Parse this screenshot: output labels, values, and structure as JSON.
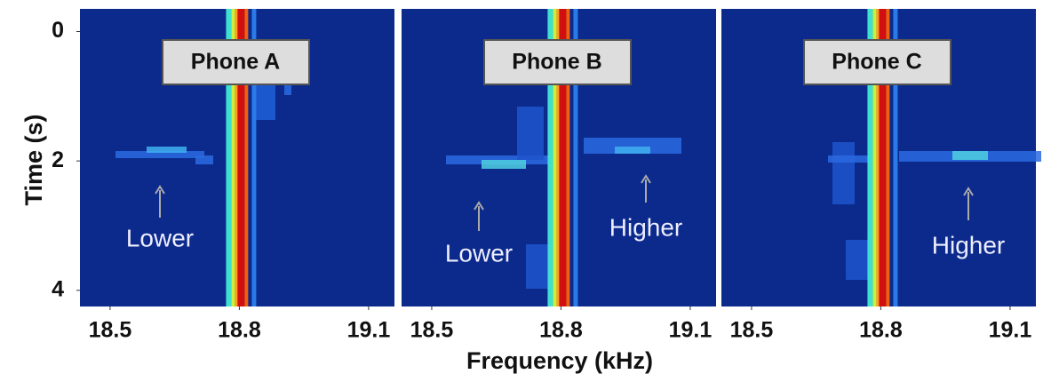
{
  "chart_data": [
    {
      "type": "heatmap",
      "title": "Phone A",
      "xlim": [
        18.43,
        19.16
      ],
      "ylim": [
        -0.35,
        4.25
      ],
      "xticks": [
        18.5,
        18.8,
        19.1
      ],
      "yticks": [
        0,
        2,
        4
      ],
      "y_label": "Time (s)",
      "annotations": [
        "Lower"
      ]
    },
    {
      "type": "heatmap",
      "title": "Phone B",
      "xlim": [
        18.43,
        19.16
      ],
      "ylim": [
        -0.35,
        4.25
      ],
      "xticks": [
        18.5,
        18.8,
        19.1
      ],
      "x_label": "Frequency (kHz)",
      "annotations": [
        "Lower",
        "Higher"
      ]
    },
    {
      "type": "heatmap",
      "title": "Phone C",
      "xlim": [
        18.43,
        19.16
      ],
      "ylim": [
        -0.35,
        4.25
      ],
      "xticks": [
        18.5,
        18.8,
        19.1
      ],
      "annotations": [
        "Higher"
      ]
    }
  ]
}
